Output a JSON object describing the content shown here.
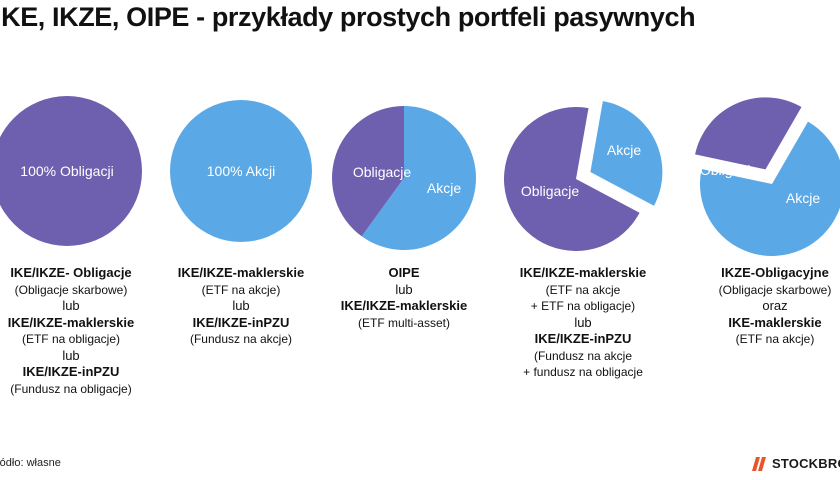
{
  "title": "IKE, IKZE, OIPE - przykłady prostych portfeli pasywnych",
  "colors": {
    "obligacje": "#6E5FAF",
    "akcje": "#5AA9E6",
    "brand_accent": "#E8552B"
  },
  "chart_data": [
    {
      "type": "pie",
      "slices": [
        {
          "label": "100% Obligacji",
          "value": 100,
          "color": "#6E5FAF"
        }
      ]
    },
    {
      "type": "pie",
      "slices": [
        {
          "label": "100% Akcji",
          "value": 100,
          "color": "#5AA9E6"
        }
      ]
    },
    {
      "type": "pie",
      "slices": [
        {
          "label": "Akcje",
          "value": 60,
          "color": "#5AA9E6"
        },
        {
          "label": "Obligacje",
          "value": 40,
          "color": "#6E5FAF"
        }
      ]
    },
    {
      "type": "pie",
      "slices": [
        {
          "label": "Akcje",
          "value": 30,
          "color": "#5AA9E6",
          "exploded": true
        },
        {
          "label": "Obligacje",
          "value": 70,
          "color": "#6E5FAF"
        }
      ]
    },
    {
      "type": "pie",
      "slices": [
        {
          "label": "Akcje",
          "value": 70,
          "color": "#5AA9E6"
        },
        {
          "label": "Obligacje",
          "value": 30,
          "color": "#6E5FAF",
          "exploded": true
        }
      ]
    }
  ],
  "captions": [
    [
      {
        "text": "IKE/IKZE- Obligacje",
        "style": "bold"
      },
      {
        "text": "(Obligacje skarbowe)",
        "style": "paren"
      },
      {
        "text": "lub",
        "style": "plain"
      },
      {
        "text": "IKE/IKZE-maklerskie",
        "style": "bold"
      },
      {
        "text": "(ETF na obligacje)",
        "style": "paren"
      },
      {
        "text": "lub",
        "style": "plain"
      },
      {
        "text": "IKE/IKZE-inPZU",
        "style": "bold"
      },
      {
        "text": "(Fundusz na obligacje)",
        "style": "paren"
      }
    ],
    [
      {
        "text": "IKE/IKZE-maklerskie",
        "style": "bold"
      },
      {
        "text": "(ETF na akcje)",
        "style": "paren"
      },
      {
        "text": "lub",
        "style": "plain"
      },
      {
        "text": "IKE/IKZE-inPZU",
        "style": "bold"
      },
      {
        "text": "(Fundusz na akcje)",
        "style": "paren"
      }
    ],
    [
      {
        "text": "OIPE",
        "style": "bold"
      },
      {
        "text": "lub",
        "style": "plain"
      },
      {
        "text": "IKE/IKZE-maklerskie",
        "style": "bold"
      },
      {
        "text": "(ETF multi-asset)",
        "style": "paren"
      }
    ],
    [
      {
        "text": "IKE/IKZE-maklerskie",
        "style": "bold"
      },
      {
        "text": "(ETF na akcje",
        "style": "paren"
      },
      {
        "text": "+ ETF na obligacje)",
        "style": "paren"
      },
      {
        "text": "lub",
        "style": "plain"
      },
      {
        "text": "IKE/IKZE-inPZU",
        "style": "bold"
      },
      {
        "text": "(Fundusz na akcje",
        "style": "paren"
      },
      {
        "text": "+ fundusz na obligacje",
        "style": "paren"
      }
    ],
    [
      {
        "text": "IKZE-Obligacyjne",
        "style": "bold"
      },
      {
        "text": "(Obligacje skarbowe)",
        "style": "paren"
      },
      {
        "text": "oraz",
        "style": "plain"
      },
      {
        "text": "IKE-maklerskie",
        "style": "bold"
      },
      {
        "text": "(ETF na akcje)",
        "style": "paren"
      }
    ]
  ],
  "source": "ródło: własne",
  "brand": {
    "name": "STOCKBROKER",
    "icon": "stockbroker-logo-icon"
  }
}
